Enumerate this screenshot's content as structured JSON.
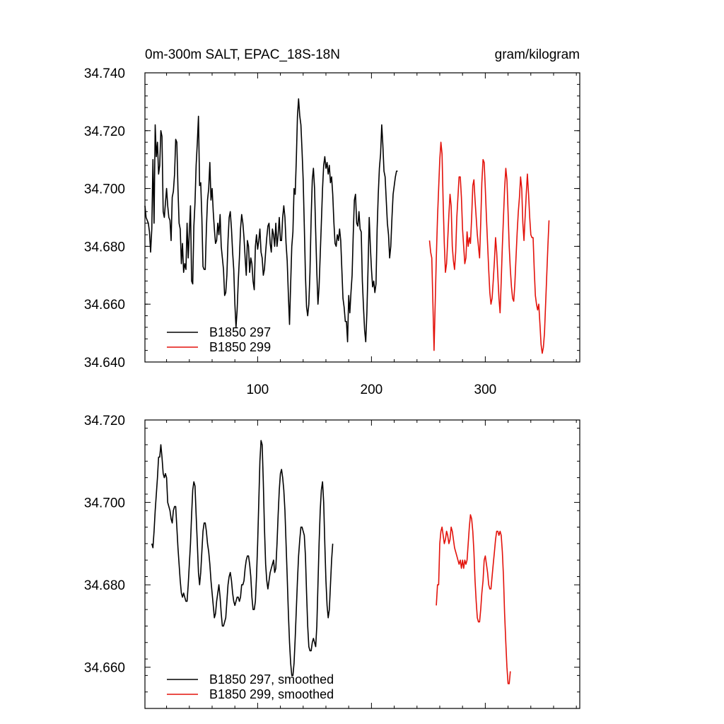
{
  "chart_data": [
    {
      "type": "line",
      "title": "0m-300m SALT, EPAC_18S-18N",
      "units": "gram/kilogram",
      "xlim": [
        1,
        383
      ],
      "ylim": [
        34.64,
        34.74
      ],
      "x_ticks": [
        100,
        200,
        300
      ],
      "y_ticks": [
        "34.640",
        "34.660",
        "34.680",
        "34.700",
        "34.720",
        "34.740"
      ],
      "legend_position": "bottom-left",
      "series": [
        {
          "name": "B1850 297",
          "color": "#000000",
          "x_start": 1,
          "values": [
            34.694,
            34.69,
            34.689,
            34.688,
            34.685,
            34.678,
            34.686,
            34.71,
            34.688,
            34.722,
            34.711,
            34.716,
            34.705,
            34.708,
            34.72,
            34.718,
            34.692,
            34.69,
            34.695,
            34.7,
            34.694,
            34.69,
            34.689,
            34.682,
            34.697,
            34.699,
            34.705,
            34.717,
            34.716,
            34.7,
            34.688,
            34.686,
            34.674,
            34.681,
            34.671,
            34.674,
            34.672,
            34.688,
            34.676,
            34.685,
            34.694,
            34.668,
            34.667,
            34.687,
            34.695,
            34.708,
            34.716,
            34.725,
            34.701,
            34.702,
            34.69,
            34.673,
            34.672,
            34.672,
            34.686,
            34.696,
            34.7,
            34.709,
            34.696,
            34.7,
            34.692,
            34.686,
            34.681,
            34.682,
            34.688,
            34.684,
            34.691,
            34.68,
            34.676,
            34.672,
            34.663,
            34.664,
            34.67,
            34.682,
            34.69,
            34.692,
            34.686,
            34.678,
            34.672,
            34.66,
            34.652,
            34.658,
            34.668,
            34.676,
            34.686,
            34.691,
            34.688,
            34.683,
            34.676,
            34.67,
            34.682,
            34.68,
            34.671,
            34.676,
            34.674,
            34.668,
            34.665,
            34.68,
            34.684,
            34.679,
            34.682,
            34.686,
            34.678,
            34.676,
            34.67,
            34.672,
            34.678,
            34.683,
            34.687,
            34.688,
            34.681,
            34.678,
            34.686,
            34.684,
            34.68,
            34.688,
            34.68,
            34.684,
            34.69,
            34.682,
            34.682,
            34.69,
            34.694,
            34.69,
            34.681,
            34.675,
            34.663,
            34.653,
            34.667,
            34.68,
            34.685,
            34.7,
            34.698,
            34.71,
            34.725,
            34.731,
            34.725,
            34.722,
            34.713,
            34.703,
            34.687,
            34.67,
            34.659,
            34.656,
            34.66,
            34.671,
            34.69,
            34.703,
            34.707,
            34.7,
            34.685,
            34.671,
            34.66,
            34.666,
            34.677,
            34.688,
            34.7,
            34.708,
            34.711,
            34.707,
            34.709,
            34.705,
            34.708,
            34.702,
            34.704,
            34.698,
            34.688,
            34.681,
            34.68,
            34.684,
            34.682,
            34.686,
            34.682,
            34.672,
            34.662,
            34.659,
            34.654,
            34.654,
            34.647,
            34.663,
            34.657,
            34.664,
            34.67,
            34.684,
            34.696,
            34.698,
            34.688,
            34.687,
            34.692,
            34.686,
            34.685,
            34.668,
            34.659,
            34.651,
            34.647,
            34.657,
            34.672,
            34.69,
            34.68,
            34.672,
            34.666,
            34.668,
            34.664,
            34.667,
            34.686,
            34.698,
            34.707,
            34.712,
            34.722,
            34.715,
            34.706,
            34.704,
            34.696,
            34.688,
            34.684,
            34.676,
            34.68,
            34.69,
            34.698,
            34.701,
            34.704,
            34.706,
            34.706
          ]
        },
        {
          "name": "B1850 299",
          "color": "#e3120b",
          "x_start": 251,
          "values": [
            34.682,
            34.678,
            34.676,
            34.66,
            34.644,
            34.66,
            34.676,
            34.69,
            34.7,
            34.71,
            34.716,
            34.712,
            34.695,
            34.681,
            34.671,
            34.674,
            34.682,
            34.691,
            34.698,
            34.694,
            34.68,
            34.675,
            34.672,
            34.678,
            34.69,
            34.697,
            34.704,
            34.704,
            34.697,
            34.686,
            34.68,
            34.674,
            34.676,
            34.685,
            34.68,
            34.683,
            34.681,
            34.69,
            34.701,
            34.703,
            34.696,
            34.69,
            34.684,
            34.68,
            34.676,
            34.688,
            34.702,
            34.71,
            34.709,
            34.7,
            34.69,
            34.681,
            34.672,
            34.664,
            34.66,
            34.662,
            34.668,
            34.675,
            34.683,
            34.678,
            34.67,
            34.662,
            34.657,
            34.668,
            34.68,
            34.69,
            34.7,
            34.707,
            34.703,
            34.692,
            34.68,
            34.672,
            34.666,
            34.662,
            34.661,
            34.667,
            34.676,
            34.685,
            34.692,
            34.697,
            34.704,
            34.7,
            34.688,
            34.682,
            34.69,
            34.698,
            34.705,
            34.698,
            34.69,
            34.684,
            34.683,
            34.683,
            34.672,
            34.663,
            34.66,
            34.658,
            34.66,
            34.653,
            34.646,
            34.643,
            34.645,
            34.65,
            34.66,
            34.67,
            34.68,
            34.689
          ]
        }
      ]
    },
    {
      "type": "line",
      "title": "",
      "units": "",
      "xlim": [
        1,
        383
      ],
      "ylim": [
        34.65,
        34.72
      ],
      "x_ticks": [
        100,
        200,
        300
      ],
      "y_ticks": [
        "34.660",
        "34.680",
        "34.700",
        "34.720"
      ],
      "legend_position": "bottom-left",
      "series": [
        {
          "name": "B1850 297, smoothed",
          "color": "#000000",
          "x_start": 7,
          "values": [
            34.69,
            34.689,
            34.693,
            34.698,
            34.702,
            34.706,
            34.711,
            34.711,
            34.714,
            34.711,
            34.707,
            34.706,
            34.707,
            34.706,
            34.7,
            34.699,
            34.698,
            34.696,
            34.695,
            34.698,
            34.699,
            34.699,
            34.694,
            34.689,
            34.685,
            34.681,
            34.678,
            34.677,
            34.678,
            34.677,
            34.676,
            34.676,
            34.68,
            34.685,
            34.69,
            34.697,
            34.703,
            34.705,
            34.704,
            34.697,
            34.69,
            34.683,
            34.68,
            34.683,
            34.688,
            34.693,
            34.695,
            34.695,
            34.693,
            34.69,
            34.688,
            34.685,
            34.681,
            34.678,
            34.675,
            34.672,
            34.673,
            34.676,
            34.678,
            34.68,
            34.677,
            34.673,
            34.67,
            34.67,
            34.671,
            34.672,
            34.676,
            34.68,
            34.682,
            34.683,
            34.681,
            34.678,
            34.676,
            34.675,
            34.676,
            34.677,
            34.677,
            34.676,
            34.677,
            34.68,
            34.68,
            34.681,
            34.684,
            34.686,
            34.687,
            34.687,
            34.685,
            34.682,
            34.677,
            34.674,
            34.674,
            34.676,
            34.682,
            34.69,
            34.7,
            34.71,
            34.715,
            34.714,
            34.705,
            34.694,
            34.685,
            34.681,
            34.679,
            34.681,
            34.683,
            34.684,
            34.685,
            34.686,
            34.683,
            34.684,
            34.69,
            34.697,
            34.703,
            34.707,
            34.708,
            34.706,
            34.703,
            34.698,
            34.69,
            34.682,
            34.673,
            34.666,
            34.661,
            34.658,
            34.658,
            34.661,
            34.667,
            34.674,
            34.681,
            34.687,
            34.691,
            34.694,
            34.694,
            34.693,
            34.692,
            34.687,
            34.678,
            34.67,
            34.665,
            34.664,
            34.664,
            34.666,
            34.667,
            34.666,
            34.665,
            34.67,
            34.68,
            34.69,
            34.698,
            34.703,
            34.705,
            34.7,
            34.69,
            34.681,
            34.675,
            34.672,
            34.674,
            34.68,
            34.686,
            34.69
          ]
        },
        {
          "name": "B1850 299, smoothed",
          "color": "#e3120b",
          "x_start": 257,
          "values": [
            34.675,
            34.68,
            34.68,
            34.69,
            34.693,
            34.694,
            34.692,
            34.69,
            34.691,
            34.693,
            34.692,
            34.69,
            34.691,
            34.694,
            34.693,
            34.691,
            34.689,
            34.688,
            34.687,
            34.686,
            34.685,
            34.686,
            34.684,
            34.686,
            34.684,
            34.686,
            34.685,
            34.686,
            34.69,
            34.694,
            34.697,
            34.696,
            34.693,
            34.688,
            34.681,
            34.676,
            34.672,
            34.671,
            34.671,
            34.674,
            34.678,
            34.681,
            34.686,
            34.687,
            34.685,
            34.683,
            34.68,
            34.679,
            34.679,
            34.682,
            34.685,
            34.688,
            34.691,
            34.693,
            34.693,
            34.692,
            34.693,
            34.692,
            34.688,
            34.682,
            34.673,
            34.666,
            34.66,
            34.656,
            34.656,
            34.659
          ]
        }
      ]
    }
  ]
}
